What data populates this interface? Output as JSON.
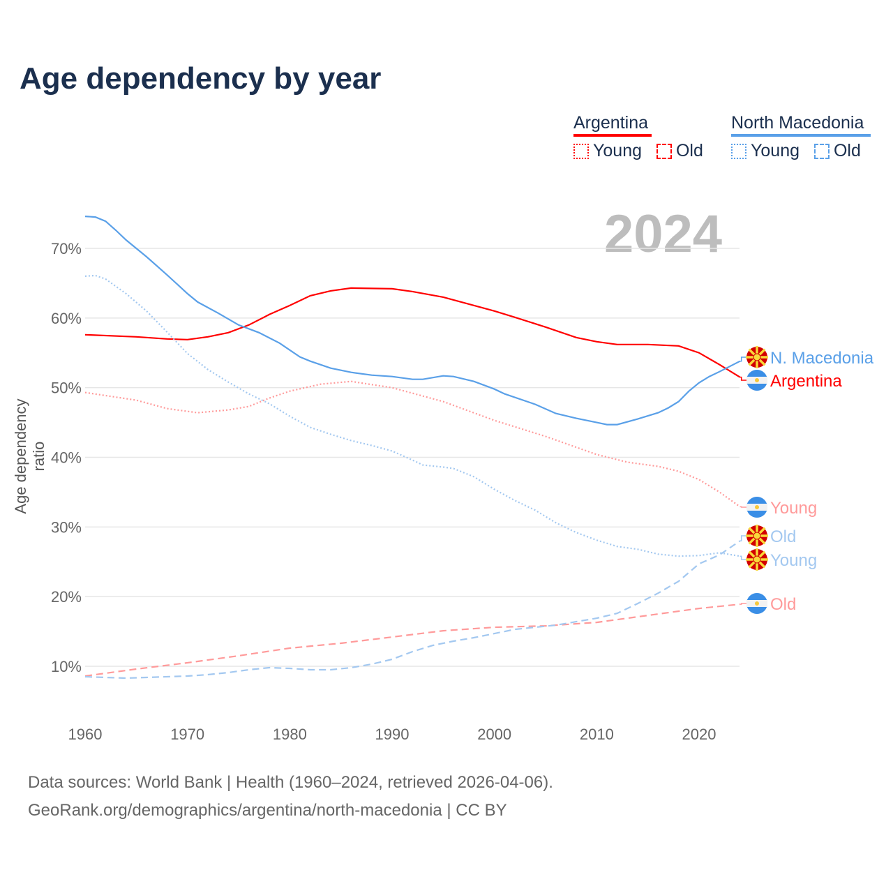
{
  "title": "Age dependency by year",
  "legend": {
    "groups": [
      {
        "name": "Argentina",
        "color": "#ff0000",
        "items": [
          "Young",
          "Old"
        ]
      },
      {
        "name": "North Macedonia",
        "color": "#5aa0e8",
        "items": [
          "Young",
          "Old"
        ]
      }
    ]
  },
  "year_display": "2024",
  "footer": {
    "line1": "Data sources: World Bank | Health (1960–2024, retrieved 2026-04-06).",
    "line2": "GeoRank.org/demographics/argentina/north-macedonia | CC BY"
  },
  "chart_data": {
    "type": "line",
    "title": "Age dependency by year",
    "xlabel": "",
    "ylabel": "Age dependency ratio",
    "xlim": [
      1960,
      2024
    ],
    "ylim": [
      3,
      78
    ],
    "xticks": [
      1960,
      1970,
      1980,
      1990,
      2000,
      2010,
      2020
    ],
    "yticks": [
      10,
      20,
      30,
      40,
      50,
      60,
      70
    ],
    "ytick_labels": [
      "10%",
      "20%",
      "30%",
      "40%",
      "50%",
      "60%",
      "70%"
    ],
    "grid": true,
    "series": [
      {
        "name": "Argentina",
        "label": "Argentina",
        "flag": "argentina",
        "color": "#ff0000",
        "style": "solid",
        "points": [
          [
            1960,
            57.6
          ],
          [
            1965,
            57.3
          ],
          [
            1968,
            57.0
          ],
          [
            1970,
            56.9
          ],
          [
            1972,
            57.3
          ],
          [
            1974,
            57.9
          ],
          [
            1976,
            59.0
          ],
          [
            1978,
            60.5
          ],
          [
            1980,
            61.8
          ],
          [
            1982,
            63.2
          ],
          [
            1984,
            63.9
          ],
          [
            1986,
            64.3
          ],
          [
            1990,
            64.2
          ],
          [
            1992,
            63.8
          ],
          [
            1995,
            63.0
          ],
          [
            2000,
            61.0
          ],
          [
            2002,
            60.1
          ],
          [
            2005,
            58.7
          ],
          [
            2008,
            57.2
          ],
          [
            2010,
            56.6
          ],
          [
            2012,
            56.2
          ],
          [
            2015,
            56.2
          ],
          [
            2018,
            56.0
          ],
          [
            2020,
            55.0
          ],
          [
            2022,
            53.3
          ],
          [
            2024,
            51.5
          ]
        ]
      },
      {
        "name": "Argentina Young",
        "label": "Young",
        "flag": "argentina",
        "color": "#ff9a9a",
        "style": "dotted",
        "points": [
          [
            1960,
            49.3
          ],
          [
            1965,
            48.2
          ],
          [
            1968,
            47.0
          ],
          [
            1971,
            46.4
          ],
          [
            1974,
            46.8
          ],
          [
            1976,
            47.3
          ],
          [
            1978,
            48.5
          ],
          [
            1980,
            49.5
          ],
          [
            1983,
            50.5
          ],
          [
            1986,
            50.9
          ],
          [
            1990,
            50.0
          ],
          [
            1995,
            48.0
          ],
          [
            2000,
            45.3
          ],
          [
            2005,
            43.0
          ],
          [
            2010,
            40.4
          ],
          [
            2013,
            39.3
          ],
          [
            2016,
            38.7
          ],
          [
            2018,
            38.0
          ],
          [
            2020,
            36.8
          ],
          [
            2022,
            35.0
          ],
          [
            2024,
            32.9
          ]
        ]
      },
      {
        "name": "Argentina Old",
        "label": "Old",
        "flag": "argentina",
        "color": "#ff9a9a",
        "style": "dashed",
        "points": [
          [
            1960,
            8.6
          ],
          [
            1965,
            9.6
          ],
          [
            1970,
            10.5
          ],
          [
            1975,
            11.5
          ],
          [
            1980,
            12.6
          ],
          [
            1985,
            13.3
          ],
          [
            1990,
            14.2
          ],
          [
            1995,
            15.1
          ],
          [
            2000,
            15.6
          ],
          [
            2005,
            15.8
          ],
          [
            2010,
            16.3
          ],
          [
            2015,
            17.3
          ],
          [
            2020,
            18.3
          ],
          [
            2024,
            18.9
          ]
        ]
      },
      {
        "name": "North Macedonia",
        "label": "N. Macedonia",
        "flag": "north-macedonia",
        "color": "#5aa0e8",
        "style": "solid",
        "points": [
          [
            1960,
            74.6
          ],
          [
            1961,
            74.5
          ],
          [
            1962,
            73.9
          ],
          [
            1963,
            72.6
          ],
          [
            1964,
            71.2
          ],
          [
            1966,
            68.8
          ],
          [
            1968,
            66.2
          ],
          [
            1970,
            63.5
          ],
          [
            1971,
            62.3
          ],
          [
            1973,
            60.7
          ],
          [
            1975,
            59.0
          ],
          [
            1977,
            57.9
          ],
          [
            1979,
            56.4
          ],
          [
            1981,
            54.4
          ],
          [
            1982,
            53.8
          ],
          [
            1984,
            52.8
          ],
          [
            1986,
            52.2
          ],
          [
            1988,
            51.8
          ],
          [
            1990,
            51.6
          ],
          [
            1992,
            51.2
          ],
          [
            1993,
            51.2
          ],
          [
            1995,
            51.7
          ],
          [
            1996,
            51.6
          ],
          [
            1998,
            50.9
          ],
          [
            2000,
            49.8
          ],
          [
            2001,
            49.1
          ],
          [
            2004,
            47.6
          ],
          [
            2006,
            46.3
          ],
          [
            2008,
            45.6
          ],
          [
            2010,
            45.0
          ],
          [
            2011,
            44.7
          ],
          [
            2012,
            44.7
          ],
          [
            2014,
            45.5
          ],
          [
            2016,
            46.4
          ],
          [
            2017,
            47.1
          ],
          [
            2018,
            48.0
          ],
          [
            2019,
            49.5
          ],
          [
            2020,
            50.7
          ],
          [
            2021,
            51.6
          ],
          [
            2022,
            52.3
          ],
          [
            2024,
            53.8
          ]
        ]
      },
      {
        "name": "North Macedonia Young",
        "label": "Young",
        "flag": "north-macedonia",
        "color": "#a3c8f0",
        "style": "dotted",
        "points": [
          [
            1960,
            66.0
          ],
          [
            1961,
            66.1
          ],
          [
            1962,
            65.6
          ],
          [
            1964,
            63.5
          ],
          [
            1966,
            61.0
          ],
          [
            1968,
            58.0
          ],
          [
            1970,
            54.9
          ],
          [
            1972,
            52.6
          ],
          [
            1974,
            50.8
          ],
          [
            1976,
            49.1
          ],
          [
            1978,
            47.7
          ],
          [
            1980,
            45.9
          ],
          [
            1982,
            44.3
          ],
          [
            1984,
            43.3
          ],
          [
            1986,
            42.4
          ],
          [
            1988,
            41.7
          ],
          [
            1990,
            40.9
          ],
          [
            1992,
            39.6
          ],
          [
            1993,
            38.9
          ],
          [
            1995,
            38.6
          ],
          [
            1996,
            38.4
          ],
          [
            1998,
            37.2
          ],
          [
            2000,
            35.4
          ],
          [
            2002,
            33.8
          ],
          [
            2004,
            32.4
          ],
          [
            2006,
            30.6
          ],
          [
            2008,
            29.2
          ],
          [
            2010,
            28.1
          ],
          [
            2012,
            27.2
          ],
          [
            2014,
            26.8
          ],
          [
            2016,
            26.1
          ],
          [
            2018,
            25.8
          ],
          [
            2020,
            25.9
          ],
          [
            2022,
            26.3
          ],
          [
            2024,
            25.8
          ]
        ]
      },
      {
        "name": "North Macedonia Old",
        "label": "Old",
        "flag": "north-macedonia",
        "color": "#a3c8f0",
        "style": "dashed",
        "points": [
          [
            1960,
            8.5
          ],
          [
            1962,
            8.4
          ],
          [
            1964,
            8.3
          ],
          [
            1966,
            8.4
          ],
          [
            1968,
            8.5
          ],
          [
            1970,
            8.6
          ],
          [
            1972,
            8.8
          ],
          [
            1974,
            9.1
          ],
          [
            1976,
            9.5
          ],
          [
            1978,
            9.8
          ],
          [
            1980,
            9.7
          ],
          [
            1982,
            9.5
          ],
          [
            1984,
            9.5
          ],
          [
            1986,
            9.8
          ],
          [
            1988,
            10.3
          ],
          [
            1990,
            11.0
          ],
          [
            1992,
            12.1
          ],
          [
            1994,
            13.0
          ],
          [
            1996,
            13.6
          ],
          [
            1998,
            14.1
          ],
          [
            2000,
            14.7
          ],
          [
            2002,
            15.3
          ],
          [
            2004,
            15.6
          ],
          [
            2006,
            15.9
          ],
          [
            2008,
            16.4
          ],
          [
            2010,
            16.9
          ],
          [
            2012,
            17.6
          ],
          [
            2014,
            19.0
          ],
          [
            2016,
            20.5
          ],
          [
            2018,
            22.2
          ],
          [
            2020,
            24.7
          ],
          [
            2022,
            26.0
          ],
          [
            2024,
            28.0
          ]
        ]
      }
    ]
  }
}
